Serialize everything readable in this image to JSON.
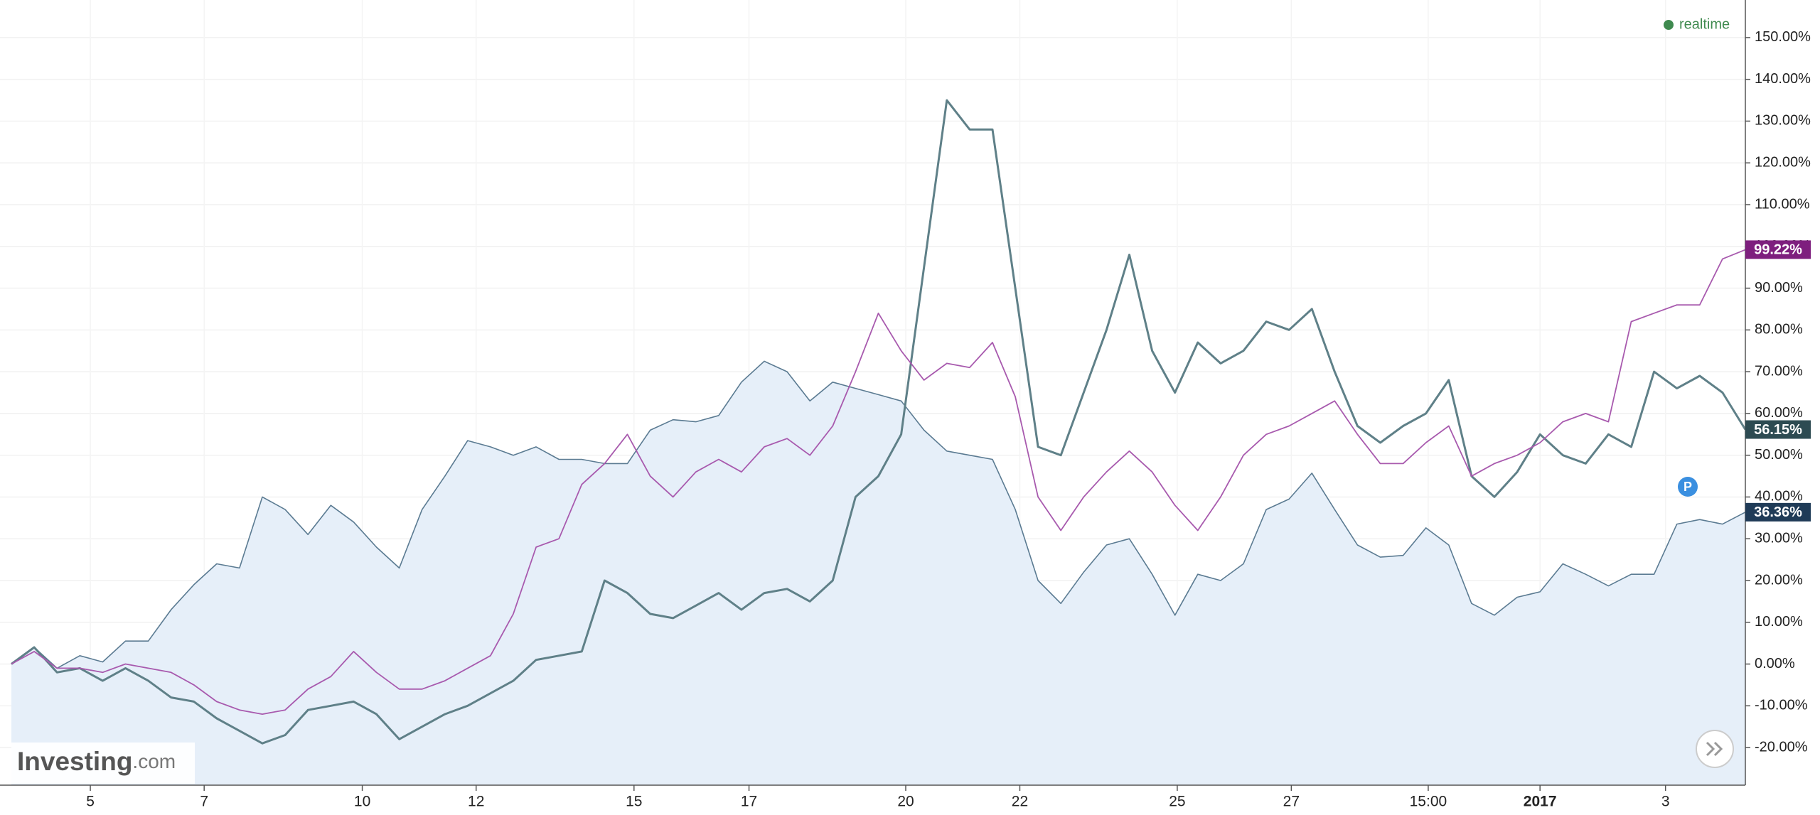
{
  "chart_data": {
    "type": "line",
    "status": "realtime",
    "brand": {
      "name": "Investing",
      "suffix": ".com"
    },
    "badge": "P",
    "x": [
      0,
      1,
      2,
      3,
      4,
      5,
      6,
      7,
      8,
      9,
      10,
      11,
      12,
      13,
      14,
      15,
      16,
      17,
      18,
      19,
      20,
      21,
      22,
      23,
      24,
      25,
      26,
      27,
      28,
      29,
      30,
      31,
      32,
      33,
      34,
      35,
      36,
      37,
      38,
      39,
      40,
      41,
      42,
      43,
      44,
      45,
      46,
      47,
      48,
      49,
      50,
      51,
      52,
      53,
      54,
      55,
      56,
      57,
      58,
      59,
      60,
      61,
      62,
      63,
      64,
      65,
      66,
      67,
      68,
      69,
      70,
      71,
      72,
      73,
      74,
      75,
      76
    ],
    "xlim": [
      0,
      76
    ],
    "xticks": [
      {
        "value": 3.46,
        "label": "5"
      },
      {
        "value": 8.45,
        "label": "7"
      },
      {
        "value": 15.38,
        "label": "10"
      },
      {
        "value": 20.37,
        "label": "12"
      },
      {
        "value": 27.29,
        "label": "15"
      },
      {
        "value": 32.33,
        "label": "17"
      },
      {
        "value": 39.2,
        "label": "20"
      },
      {
        "value": 44.2,
        "label": "22"
      },
      {
        "value": 51.1,
        "label": "25"
      },
      {
        "value": 56.1,
        "label": "27"
      },
      {
        "value": 62.1,
        "label": "15:00"
      },
      {
        "value": 67.0,
        "label": "2017"
      },
      {
        "value": 72.5,
        "label": "3"
      }
    ],
    "ylim": [
      -29,
      159
    ],
    "yticks": [
      {
        "value": -20,
        "label": "-20.00%"
      },
      {
        "value": -10,
        "label": "-10.00%"
      },
      {
        "value": 0,
        "label": "0.00%"
      },
      {
        "value": 10,
        "label": "10.00%"
      },
      {
        "value": 20,
        "label": "20.00%"
      },
      {
        "value": 30,
        "label": "30.00%"
      },
      {
        "value": 40,
        "label": "40.00%"
      },
      {
        "value": 50,
        "label": "50.00%"
      },
      {
        "value": 60,
        "label": "60.00%"
      },
      {
        "value": 70,
        "label": "70.00%"
      },
      {
        "value": 80,
        "label": "80.00%"
      },
      {
        "value": 90,
        "label": "90.00%"
      },
      {
        "value": 100,
        "label": "100.00%"
      },
      {
        "value": 110,
        "label": "110.00%"
      },
      {
        "value": 120,
        "label": "120.00%"
      },
      {
        "value": 130,
        "label": "130.00%"
      },
      {
        "value": 140,
        "label": "140.00%"
      },
      {
        "value": 150,
        "label": "150.00%"
      }
    ],
    "grid": true,
    "series": [
      {
        "color": "#5b7b92",
        "fill": "#e6eff9",
        "label_color": "#1f3b57",
        "width": 1.6,
        "values": [
          0,
          4,
          -1,
          2,
          0.5,
          5.5,
          5.5,
          13,
          19,
          24,
          23,
          40,
          37,
          31,
          38,
          34,
          28,
          23,
          37,
          45,
          53.5,
          52,
          50,
          52,
          49,
          49,
          48,
          48,
          56,
          58.5,
          58,
          59.5,
          67.5,
          72.5,
          70,
          63,
          67.5,
          66,
          64.5,
          63,
          56,
          51,
          50,
          49,
          37,
          20,
          14.5,
          22,
          28.5,
          30,
          21.5,
          11.7,
          21.5,
          20,
          24,
          37,
          39.5,
          45.7,
          37,
          28.5,
          25.6,
          26,
          32.6,
          28.5,
          14.5,
          11.7,
          16,
          17.3,
          24,
          21.5,
          18.7,
          21.5,
          21.5,
          33.5,
          34.6,
          33.5,
          36.36
        ],
        "value_labels": [
          null,
          null,
          null,
          null,
          null,
          null,
          null,
          null,
          null,
          null,
          null,
          null,
          null,
          null,
          null,
          null,
          null,
          null,
          null,
          null,
          null,
          null,
          null,
          null,
          null,
          null,
          null,
          null,
          null,
          null,
          null,
          null,
          null,
          null,
          null,
          null,
          null,
          null,
          null,
          null,
          null,
          null,
          null,
          null,
          null,
          null,
          null,
          null,
          null,
          null,
          null,
          null,
          null,
          null,
          null,
          null,
          null,
          null,
          null,
          null,
          null,
          null,
          null,
          null,
          null,
          null,
          null,
          null,
          null,
          null,
          null,
          null,
          null,
          null,
          null,
          null,
          "36.36%"
        ]
      },
      {
        "color": "#5f8088",
        "label_color": "#2d4b52",
        "width": 3,
        "values": [
          0,
          4,
          -2,
          -1,
          -4,
          -1,
          -4,
          -8,
          -9,
          -13,
          -16,
          -19,
          -17,
          -11,
          -10,
          -9,
          -12,
          -18,
          -15,
          -12,
          -10,
          -7,
          -4,
          1,
          2,
          3,
          20,
          17,
          12,
          11,
          14,
          17,
          13,
          17,
          18,
          15,
          20,
          40,
          45,
          55,
          95,
          135,
          128,
          128,
          90,
          52,
          50,
          65,
          80,
          98,
          75,
          65,
          77,
          72,
          75,
          82,
          80,
          85,
          70,
          57,
          53,
          57,
          60,
          68,
          45,
          40,
          46,
          55,
          50,
          48,
          55,
          52,
          70,
          66,
          69,
          65,
          56.15
        ],
        "value_labels": [
          null,
          null,
          null,
          null,
          null,
          null,
          null,
          null,
          null,
          null,
          null,
          null,
          null,
          null,
          null,
          null,
          null,
          null,
          null,
          null,
          null,
          null,
          null,
          null,
          null,
          null,
          null,
          null,
          null,
          null,
          null,
          null,
          null,
          null,
          null,
          null,
          null,
          null,
          null,
          null,
          null,
          null,
          null,
          null,
          null,
          null,
          null,
          null,
          null,
          null,
          null,
          null,
          null,
          null,
          null,
          null,
          null,
          null,
          null,
          null,
          null,
          null,
          null,
          null,
          null,
          null,
          null,
          null,
          null,
          null,
          null,
          null,
          null,
          null,
          null,
          null,
          "56.15%"
        ]
      },
      {
        "color": "#a85aae",
        "label_color": "#7e1f7e",
        "width": 1.8,
        "values": [
          0,
          3,
          -1,
          -1,
          -2,
          0,
          -1,
          -2,
          -5,
          -9,
          -11,
          -12,
          -11,
          -6,
          -3,
          3,
          -2,
          -6,
          -6,
          -4,
          -1,
          2,
          12,
          28,
          30,
          43,
          48,
          55,
          45,
          40,
          46,
          49,
          46,
          52,
          54,
          50,
          57,
          70,
          84,
          75,
          68,
          72,
          71,
          77,
          64,
          40,
          32,
          40,
          46,
          51,
          46,
          38,
          32,
          40,
          50,
          55,
          57,
          60,
          63,
          55,
          48,
          48,
          53,
          57,
          45,
          48,
          50,
          53,
          58,
          60,
          58,
          82,
          84,
          86,
          86,
          97,
          99.22
        ],
        "value_labels": [
          null,
          null,
          null,
          null,
          null,
          null,
          null,
          null,
          null,
          null,
          null,
          null,
          null,
          null,
          null,
          null,
          null,
          null,
          null,
          null,
          null,
          null,
          null,
          null,
          null,
          null,
          null,
          null,
          null,
          null,
          null,
          null,
          null,
          null,
          null,
          null,
          null,
          null,
          null,
          null,
          null,
          null,
          null,
          null,
          null,
          null,
          null,
          null,
          null,
          null,
          null,
          null,
          null,
          null,
          null,
          null,
          null,
          null,
          null,
          null,
          null,
          null,
          null,
          null,
          null,
          null,
          null,
          null,
          null,
          null,
          null,
          null,
          null,
          null,
          null,
          null,
          "99.22%"
        ]
      }
    ]
  }
}
